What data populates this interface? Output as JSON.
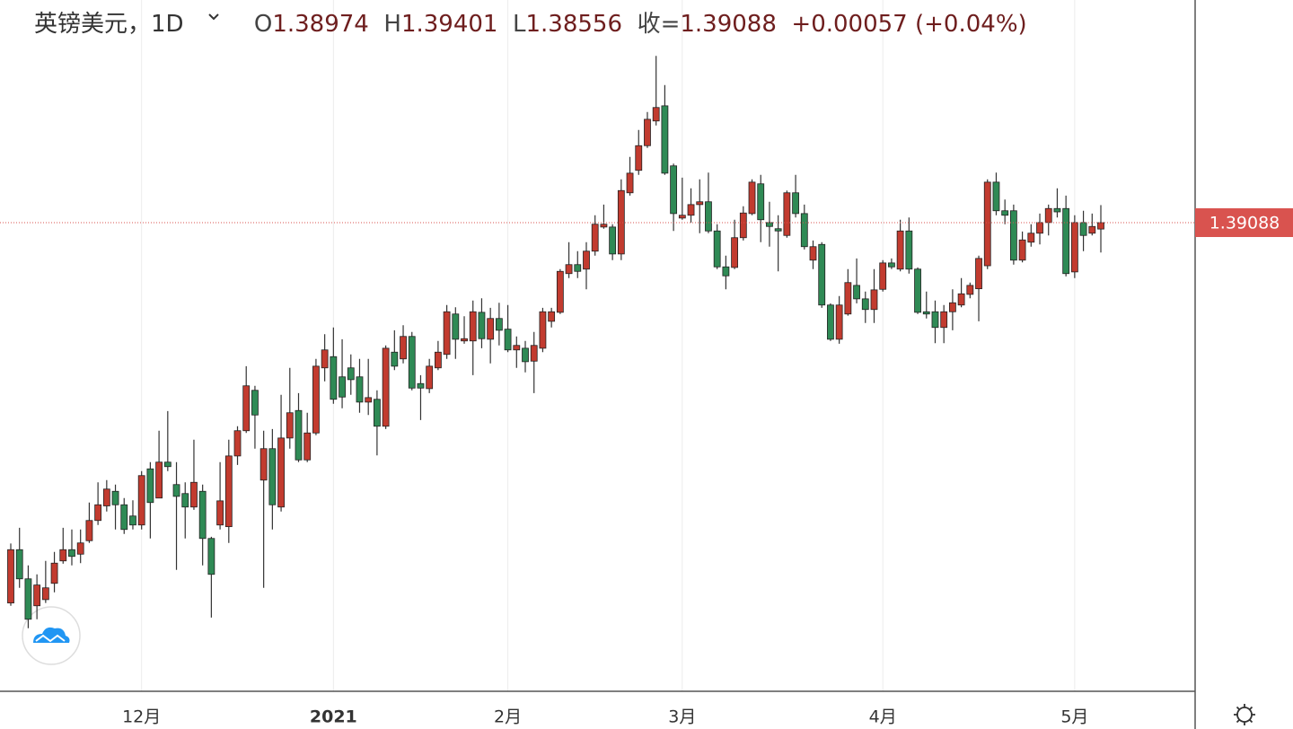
{
  "chart_data": {
    "type": "candlestick",
    "title": "英镑美元，1D",
    "header": {
      "open_label": "O",
      "high_label": "H",
      "low_label": "L",
      "close_label": "收=",
      "change": {
        "value": 0.00057,
        "label": "+0.00057"
      },
      "change_pct": {
        "value": 0.04,
        "label": "(+0.04%)"
      }
    },
    "up_color": "#c23b2f",
    "down_color": "#2f8a55",
    "last_price_color": "#d9534f",
    "ylim": [
      1.30736,
      1.43056
    ],
    "categories": [
      null,
      null,
      null,
      null,
      null,
      null,
      null,
      null,
      null,
      null,
      null,
      null,
      null,
      null,
      null,
      "12月",
      null,
      null,
      null,
      null,
      null,
      null,
      null,
      null,
      null,
      null,
      null,
      null,
      null,
      null,
      null,
      null,
      null,
      null,
      null,
      null,
      null,
      "2021",
      null,
      null,
      null,
      null,
      null,
      null,
      null,
      null,
      null,
      null,
      null,
      null,
      null,
      null,
      null,
      null,
      null,
      null,
      null,
      "2月",
      null,
      null,
      null,
      null,
      null,
      null,
      null,
      null,
      null,
      null,
      null,
      null,
      null,
      null,
      null,
      null,
      null,
      null,
      null,
      "3月",
      null,
      null,
      null,
      null,
      null,
      null,
      null,
      null,
      null,
      null,
      null,
      null,
      null,
      null,
      null,
      null,
      null,
      null,
      null,
      null,
      null,
      null,
      "4月",
      null,
      null,
      null,
      null,
      null,
      null,
      null,
      null,
      null,
      null,
      null,
      null,
      null,
      null,
      null,
      null,
      null,
      null,
      null,
      null,
      null,
      "5月",
      null,
      null,
      null
    ],
    "open": [
      1.3231,
      1.3326,
      1.3274,
      1.3226,
      1.3237,
      1.3266,
      1.3306,
      1.3326,
      1.3318,
      1.3342,
      1.3378,
      1.3404,
      1.343,
      1.3406,
      1.3386,
      1.337,
      1.347,
      1.3418,
      1.3482,
      1.3442,
      1.3426,
      1.3402,
      1.343,
      1.3346,
      1.337,
      1.3367,
      1.3493,
      1.3538,
      1.361,
      1.345,
      1.3506,
      1.3402,
      1.3525,
      1.3574,
      1.3486,
      1.3534,
      1.365,
      1.367,
      1.3634,
      1.365,
      1.3634,
      1.3589,
      1.3594,
      1.3546,
      1.3678,
      1.3666,
      1.3706,
      1.3622,
      1.3613,
      1.365,
      1.3674,
      1.3746,
      1.3698,
      1.3698,
      1.3749,
      1.3701,
      1.3738,
      1.3719,
      1.3682,
      1.3685,
      1.3662,
      1.3685,
      1.3733,
      1.3749,
      1.3818,
      1.3834,
      1.3826,
      1.3858,
      1.3901,
      1.3901,
      1.3853,
      1.3962,
      1.4002,
      1.4046,
      1.409,
      1.4117,
      1.401,
      1.3917,
      1.3922,
      1.3941,
      1.3946,
      1.3894,
      1.383,
      1.3829,
      1.3882,
      1.3925,
      1.3978,
      1.3909,
      1.3898,
      1.3886,
      1.3962,
      1.3925,
      1.3842,
      1.387,
      1.3762,
      1.3701,
      1.3746,
      1.3797,
      1.3773,
      1.3754,
      1.379,
      1.3837,
      1.3826,
      1.3894,
      1.3826,
      1.375,
      1.375,
      1.3722,
      1.375,
      1.3762,
      1.3781,
      1.3791,
      1.3832,
      1.3981,
      1.393,
      1.393,
      1.3842,
      1.3874,
      1.389,
      1.3909,
      1.3934,
      1.3934,
      1.3821,
      1.3909,
      1.389,
      1.38974
    ],
    "high": [
      1.3337,
      1.3365,
      1.3298,
      1.3282,
      1.3306,
      1.3322,
      1.3365,
      1.3362,
      1.3362,
      1.341,
      1.3446,
      1.345,
      1.3442,
      1.3418,
      1.3414,
      1.3466,
      1.3482,
      1.3538,
      1.3573,
      1.3482,
      1.3446,
      1.3522,
      1.3442,
      1.3349,
      1.3482,
      1.3522,
      1.3546,
      1.3653,
      1.3618,
      1.3538,
      1.3541,
      1.3602,
      1.365,
      1.3605,
      1.357,
      1.3666,
      1.371,
      1.3722,
      1.3701,
      1.3674,
      1.3666,
      1.3666,
      1.361,
      1.369,
      1.3717,
      1.3726,
      1.3714,
      1.3637,
      1.3666,
      1.3698,
      1.3762,
      1.3758,
      1.3742,
      1.377,
      1.3774,
      1.3757,
      1.3766,
      1.3762,
      1.3706,
      1.3698,
      1.3714,
      1.3757,
      1.3757,
      1.3826,
      1.3874,
      1.3858,
      1.3874,
      1.3922,
      1.3941,
      1.3906,
      1.3986,
      1.4026,
      1.4074,
      1.4106,
      1.4206,
      1.4154,
      1.4014,
      1.3989,
      1.397,
      1.3986,
      1.3998,
      1.3906,
      1.385,
      1.3914,
      1.3938,
      1.3986,
      1.3994,
      1.3946,
      1.3922,
      1.3966,
      1.3994,
      1.3941,
      1.3877,
      1.3874,
      1.3765,
      1.3778,
      1.3826,
      1.3845,
      1.3786,
      1.3826,
      1.3842,
      1.3845,
      1.3914,
      1.3918,
      1.3829,
      1.3786,
      1.377,
      1.3762,
      1.379,
      1.381,
      1.3802,
      1.385,
      1.3986,
      1.3998,
      1.395,
      1.3941,
      1.3893,
      1.3906,
      1.3925,
      1.3941,
      1.397,
      1.3957,
      1.3922,
      1.393,
      1.3925,
      1.39401
    ],
    "low": [
      1.3226,
      1.3258,
      1.3186,
      1.3202,
      1.3231,
      1.325,
      1.3301,
      1.3298,
      1.3302,
      1.3338,
      1.337,
      1.3394,
      1.3362,
      1.3354,
      1.3362,
      1.3362,
      1.3346,
      1.3418,
      1.3466,
      1.329,
      1.3346,
      1.3397,
      1.3298,
      1.3205,
      1.3362,
      1.3338,
      1.3477,
      1.3534,
      1.3506,
      1.3258,
      1.3362,
      1.3394,
      1.3506,
      1.3482,
      1.3482,
      1.353,
      1.3626,
      1.3586,
      1.3578,
      1.3602,
      1.357,
      1.3566,
      1.3494,
      1.3541,
      1.3646,
      1.3658,
      1.361,
      1.3557,
      1.3605,
      1.3646,
      1.3666,
      1.3666,
      1.3693,
      1.3637,
      1.3685,
      1.3658,
      1.369,
      1.3678,
      1.365,
      1.3642,
      1.3605,
      1.3678,
      1.3722,
      1.3746,
      1.381,
      1.381,
      1.379,
      1.385,
      1.3898,
      1.3842,
      1.3842,
      1.3957,
      1.3994,
      1.4042,
      1.4082,
      1.3994,
      1.3894,
      1.3914,
      1.3909,
      1.389,
      1.389,
      1.3826,
      1.379,
      1.3826,
      1.3877,
      1.3922,
      1.3874,
      1.3866,
      1.3822,
      1.3882,
      1.3918,
      1.3861,
      1.3826,
      1.3757,
      1.3698,
      1.3693,
      1.3743,
      1.3765,
      1.373,
      1.373,
      1.3786,
      1.3826,
      1.3822,
      1.3818,
      1.3746,
      1.3738,
      1.3694,
      1.3694,
      1.3717,
      1.3758,
      1.3774,
      1.3733,
      1.3826,
      1.3922,
      1.3906,
      1.3834,
      1.3838,
      1.3866,
      1.387,
      1.3886,
      1.3918,
      1.3813,
      1.381,
      1.3858,
      1.3886,
      1.38556
    ],
    "close": [
      1.3326,
      1.3274,
      1.3202,
      1.3263,
      1.3258,
      1.3302,
      1.3326,
      1.3314,
      1.3338,
      1.3378,
      1.3406,
      1.3434,
      1.3406,
      1.3362,
      1.337,
      1.3458,
      1.341,
      1.3482,
      1.3474,
      1.3421,
      1.3402,
      1.3446,
      1.3346,
      1.3282,
      1.3413,
      1.3493,
      1.3538,
      1.3618,
      1.3566,
      1.3506,
      1.3406,
      1.3525,
      1.357,
      1.3486,
      1.3534,
      1.3653,
      1.3682,
      1.3594,
      1.3598,
      1.3629,
      1.3589,
      1.3597,
      1.3546,
      1.3685,
      1.3653,
      1.3706,
      1.3614,
      1.3614,
      1.3653,
      1.3678,
      1.375,
      1.3701,
      1.3702,
      1.375,
      1.3702,
      1.3738,
      1.3717,
      1.3682,
      1.369,
      1.3661,
      1.369,
      1.375,
      1.375,
      1.3822,
      1.3834,
      1.3822,
      1.3858,
      1.3906,
      1.3906,
      1.3853,
      1.3966,
      1.3997,
      1.4046,
      1.4093,
      1.4114,
      1.3997,
      1.3925,
      1.3922,
      1.3941,
      1.3946,
      1.3894,
      1.383,
      1.3814,
      1.3882,
      1.3926,
      1.3981,
      1.3914,
      1.3902,
      1.3894,
      1.3962,
      1.3925,
      1.3866,
      1.3866,
      1.3762,
      1.3701,
      1.3762,
      1.3802,
      1.3773,
      1.3754,
      1.3789,
      1.3837,
      1.383,
      1.3894,
      1.3826,
      1.3749,
      1.3746,
      1.3722,
      1.375,
      1.3766,
      1.3782,
      1.3797,
      1.3845,
      1.3981,
      1.393,
      1.3922,
      1.3842,
      1.3878,
      1.389,
      1.3909,
      1.3934,
      1.3928,
      1.3818,
      1.3909,
      1.3886,
      1.3902,
      1.39088
    ]
  }
}
